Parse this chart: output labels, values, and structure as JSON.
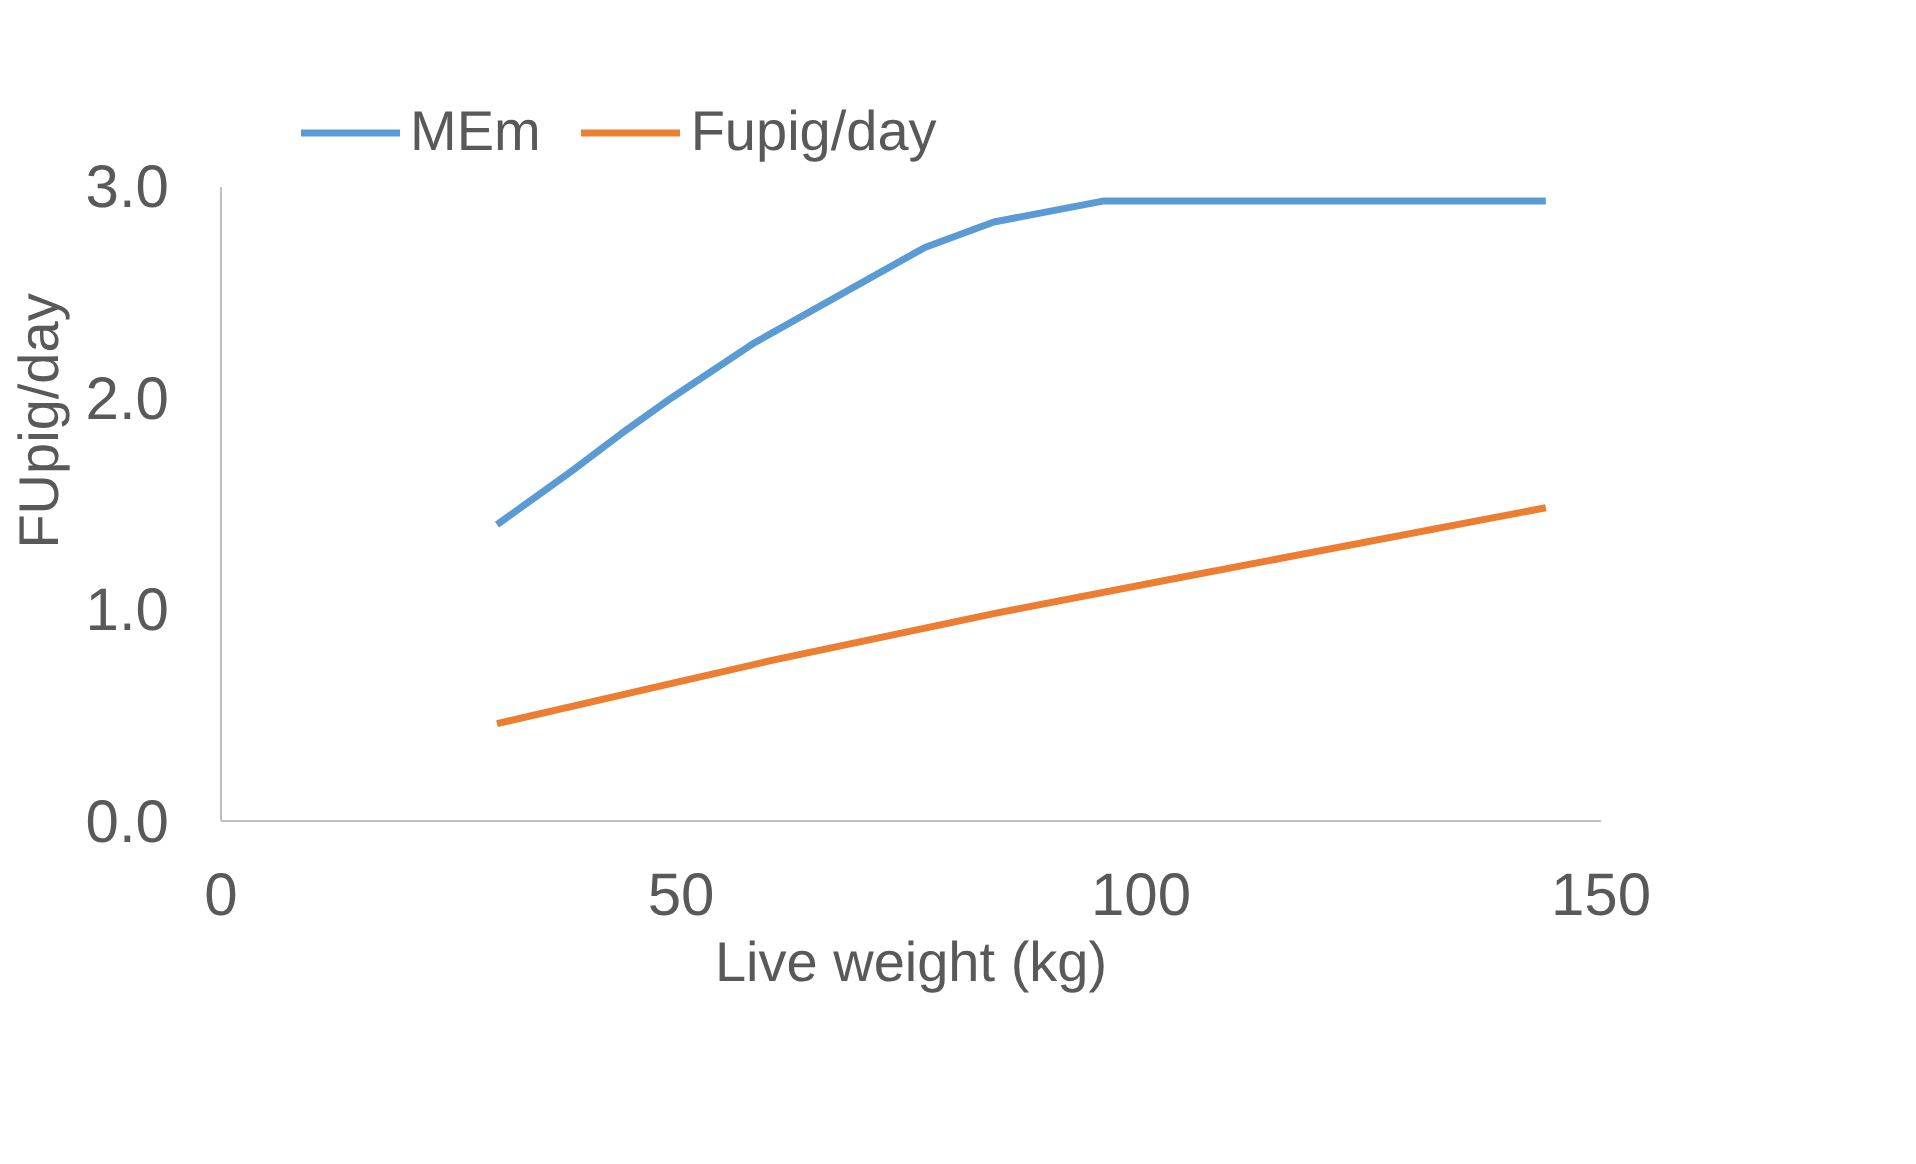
{
  "chart_data": {
    "type": "line",
    "xlabel": "Live weight (kg)",
    "ylabel": "FUpig/day",
    "xlim": [
      0,
      150
    ],
    "xticks": [
      0,
      50,
      100,
      150
    ],
    "ylim": [
      0,
      3
    ],
    "yticks": [
      {
        "value": 0,
        "label": "0.0"
      },
      {
        "value": 1,
        "label": "1.0"
      },
      {
        "value": 2,
        "label": "2.0"
      },
      {
        "value": 3,
        "label": "3.0"
      }
    ],
    "grid": false,
    "legend": "top",
    "marker": "none",
    "line_style": "solid",
    "series": [
      {
        "name": "MEm",
        "color": "#5b9bd5",
        "x": [
          30,
          38,
          43.5,
          49,
          58,
          76.5,
          84,
          96,
          144
        ],
        "values": [
          1.4,
          1.65,
          1.83,
          2.0,
          2.26,
          2.71,
          2.83,
          2.93,
          2.93
        ]
      },
      {
        "name": "Fupig/day",
        "color": "#ed7d31",
        "x": [
          30,
          49,
          60,
          84,
          103,
          144
        ],
        "values": [
          0.46,
          0.65,
          0.76,
          0.98,
          1.14,
          1.48
        ]
      }
    ]
  }
}
